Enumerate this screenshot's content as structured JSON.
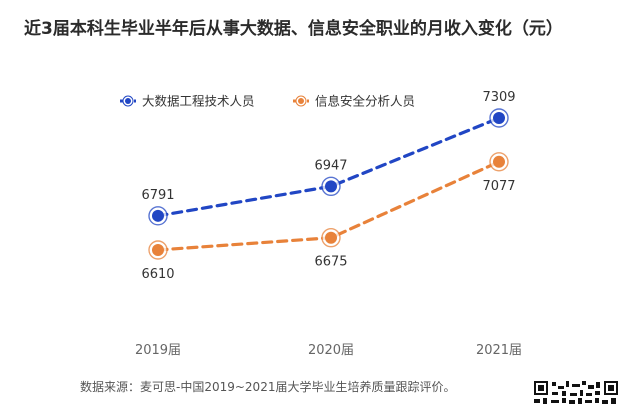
{
  "title": "近3届本科生毕业半年后从事大数据、信息安全职业的月收入变化（元）",
  "source": "数据来源：麦可思-中国2019~2021届大学毕业生培养质量跟踪评价。",
  "colors": {
    "bigdata": "#2146c4",
    "security": "#e8823a",
    "axis_text": "#666666",
    "label_text": "#333333"
  },
  "chart_data": {
    "type": "line",
    "title": "近3届本科生毕业半年后从事大数据、信息安全职业的月收入变化（元）",
    "categories": [
      "2019届",
      "2020届",
      "2021届"
    ],
    "series": [
      {
        "name": "大数据工程技术人员",
        "values": [
          6791,
          6947,
          7309
        ],
        "color": "#2146c4"
      },
      {
        "name": "信息安全分析人员",
        "values": [
          6610,
          6675,
          7077
        ],
        "color": "#e8823a"
      }
    ],
    "xlabel": "",
    "ylabel": "",
    "ylim": [
      6400,
      7400
    ],
    "grid": false,
    "legend": "top-left",
    "line_style": "dashed"
  },
  "legend": {
    "items": [
      {
        "label": "大数据工程技术人员"
      },
      {
        "label": "信息安全分析人员"
      }
    ]
  },
  "qr_icon": "qr-code-icon"
}
